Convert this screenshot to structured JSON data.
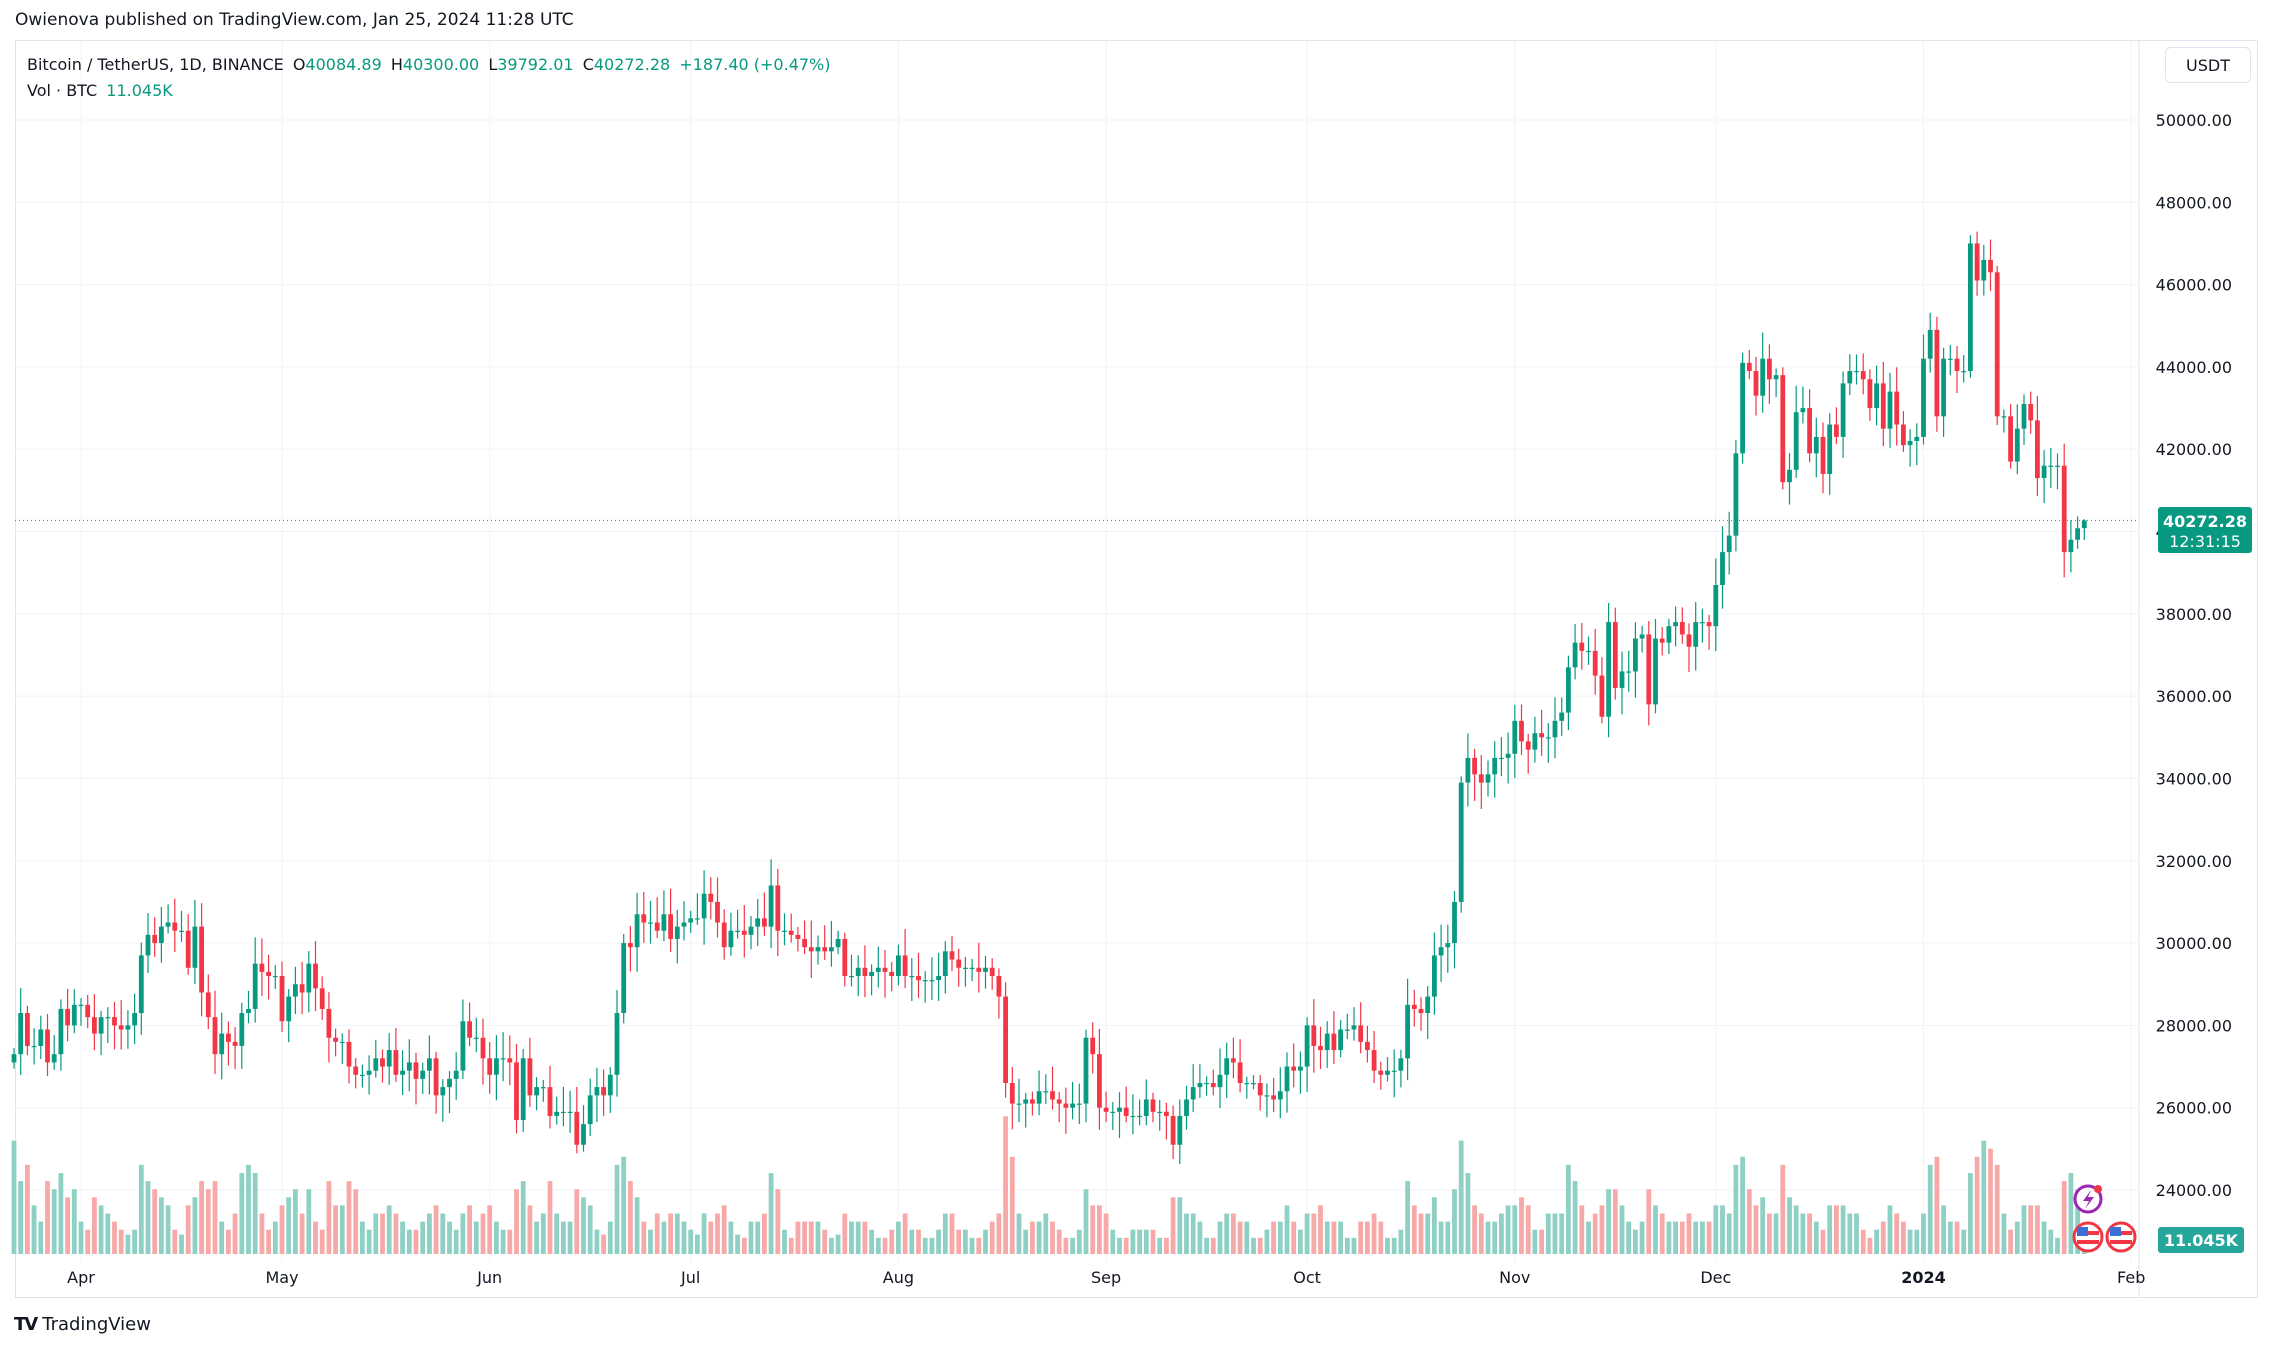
{
  "publisher": "Owienova published on TradingView.com, Jan 25, 2024 11:28 UTC",
  "legend": {
    "symbol": "Bitcoin / TetherUS, 1D, BINANCE",
    "open_label": "O",
    "open": "40084.89",
    "high_label": "H",
    "high": "40300.00",
    "low_label": "L",
    "low": "39792.01",
    "close_label": "C",
    "close": "40272.28",
    "change": "+187.40 (+0.47%)",
    "vol_label": "Vol · BTC",
    "vol_value": "11.045K"
  },
  "currency_button": "USDT",
  "last_price_label": "40272.28",
  "countdown": "12:31:15",
  "volume_label": "11.045K",
  "brand": "TradingView",
  "colors": {
    "up": "#089981",
    "down": "#f23645",
    "vol_up": "#8fd0c5",
    "vol_down": "#f7a8a8",
    "grid": "#f0f3fa"
  },
  "icons": [
    "lightning-event-icon",
    "us-flag-event-icon",
    "us-flag-event-icon"
  ],
  "chart_data": {
    "type": "candlestick",
    "start_date": "2023-03-22",
    "end_date": "2024-01-25",
    "interval": "1D",
    "close_thousands": [
      27.3,
      28.3,
      27.5,
      27.5,
      27.9,
      27.1,
      27.3,
      28.4,
      28.0,
      28.5,
      28.5,
      28.2,
      27.8,
      28.2,
      28.2,
      28.0,
      27.9,
      28.0,
      28.3,
      29.7,
      30.2,
      30.0,
      30.4,
      30.5,
      30.3,
      30.3,
      29.4,
      30.4,
      28.8,
      28.2,
      27.3,
      27.8,
      27.6,
      27.5,
      28.3,
      28.4,
      29.5,
      29.3,
      29.2,
      29.2,
      28.1,
      28.7,
      29.0,
      28.8,
      29.5,
      28.9,
      28.4,
      27.7,
      27.6,
      27.6,
      27.0,
      26.8,
      26.8,
      26.9,
      27.2,
      27.0,
      27.4,
      26.8,
      26.9,
      27.1,
      26.7,
      26.9,
      27.2,
      26.3,
      26.5,
      26.7,
      26.9,
      28.1,
      27.7,
      27.7,
      27.2,
      26.8,
      27.2,
      27.2,
      27.1,
      25.7,
      27.2,
      26.3,
      26.5,
      26.5,
      25.8,
      25.9,
      25.9,
      25.9,
      25.1,
      25.6,
      26.3,
      26.5,
      26.3,
      26.8,
      28.3,
      30.0,
      29.9,
      30.7,
      30.5,
      30.5,
      30.3,
      30.7,
      30.1,
      30.4,
      30.5,
      30.6,
      30.6,
      31.2,
      31.0,
      30.5,
      29.9,
      30.3,
      30.3,
      30.2,
      30.4,
      30.6,
      30.4,
      31.4,
      30.3,
      30.3,
      30.2,
      30.1,
      29.9,
      29.8,
      29.9,
      29.8,
      29.9,
      30.1,
      29.2,
      29.2,
      29.4,
      29.2,
      29.3,
      29.4,
      29.3,
      29.2,
      29.7,
      29.2,
      29.2,
      29.1,
      29.1,
      29.1,
      29.2,
      29.8,
      29.6,
      29.4,
      29.4,
      29.4,
      29.3,
      29.4,
      29.2,
      28.7,
      26.6,
      26.1,
      26.1,
      26.2,
      26.1,
      26.4,
      26.4,
      26.2,
      26.1,
      26.0,
      26.1,
      26.1,
      27.7,
      27.3,
      26.0,
      25.9,
      25.9,
      26.0,
      25.8,
      25.8,
      25.8,
      26.2,
      25.9,
      25.9,
      25.8,
      25.1,
      25.8,
      26.2,
      26.5,
      26.6,
      26.6,
      26.5,
      26.8,
      27.2,
      27.1,
      26.6,
      26.6,
      26.6,
      26.3,
      26.3,
      26.2,
      26.4,
      27.0,
      26.9,
      27.0,
      28.0,
      27.5,
      27.4,
      27.8,
      27.4,
      27.9,
      27.9,
      28.0,
      27.6,
      27.4,
      26.9,
      26.8,
      26.9,
      26.9,
      27.2,
      28.5,
      28.4,
      28.3,
      28.7,
      29.7,
      29.9,
      30.0,
      31.0,
      33.9,
      34.5,
      34.1,
      33.9,
      34.1,
      34.5,
      34.5,
      34.6,
      35.4,
      34.9,
      34.7,
      35.1,
      35.0,
      35.0,
      35.4,
      35.6,
      36.7,
      37.3,
      37.1,
      37.1,
      36.5,
      35.5,
      37.8,
      36.2,
      36.6,
      36.6,
      37.4,
      37.5,
      35.8,
      37.4,
      37.3,
      37.7,
      37.8,
      37.5,
      37.2,
      37.8,
      37.8,
      37.7,
      38.7,
      39.5,
      39.9,
      41.9,
      44.1,
      43.9,
      43.3,
      44.2,
      43.7,
      43.8,
      41.2,
      41.5,
      42.9,
      43.0,
      41.9,
      42.3,
      41.4,
      42.6,
      42.3,
      43.6,
      43.9,
      43.9,
      43.7,
      43.0,
      43.6,
      42.5,
      43.4,
      42.6,
      42.1,
      42.2,
      42.3,
      44.2,
      44.9,
      42.8,
      44.2,
      44.2,
      43.9,
      43.9,
      47.0,
      46.1,
      46.6,
      46.3,
      42.8,
      42.8,
      41.7,
      42.5,
      43.1,
      42.7,
      41.3,
      41.6,
      41.6,
      41.6,
      39.5,
      39.8,
      40.08,
      40.27
    ],
    "volume_k": [
      70,
      45,
      55,
      30,
      20,
      45,
      40,
      50,
      35,
      40,
      20,
      15,
      35,
      30,
      25,
      20,
      15,
      12,
      15,
      55,
      45,
      40,
      35,
      30,
      15,
      12,
      30,
      35,
      45,
      40,
      45,
      20,
      15,
      25,
      50,
      55,
      50,
      25,
      15,
      20,
      30,
      35,
      40,
      25,
      40,
      20,
      15,
      45,
      30,
      30,
      45,
      40,
      20,
      15,
      25,
      25,
      30,
      25,
      20,
      15,
      15,
      20,
      25,
      30,
      25,
      20,
      15,
      25,
      30,
      20,
      25,
      30,
      20,
      15,
      15,
      40,
      45,
      30,
      20,
      25,
      45,
      25,
      20,
      20,
      40,
      35,
      30,
      15,
      12,
      20,
      55,
      60,
      45,
      35,
      20,
      15,
      25,
      20,
      25,
      25,
      20,
      15,
      12,
      25,
      20,
      25,
      30,
      20,
      12,
      10,
      20,
      20,
      25,
      50,
      40,
      15,
      10,
      20,
      20,
      20,
      20,
      15,
      10,
      12,
      25,
      20,
      20,
      20,
      15,
      10,
      10,
      15,
      20,
      25,
      15,
      15,
      10,
      10,
      15,
      25,
      25,
      15,
      15,
      10,
      10,
      15,
      20,
      25,
      85,
      60,
      25,
      15,
      20,
      20,
      25,
      20,
      15,
      10,
      10,
      15,
      40,
      30,
      30,
      25,
      15,
      10,
      10,
      15,
      15,
      15,
      15,
      10,
      10,
      35,
      35,
      25,
      25,
      20,
      10,
      10,
      20,
      25,
      25,
      20,
      20,
      10,
      10,
      15,
      20,
      20,
      30,
      20,
      15,
      25,
      25,
      30,
      20,
      20,
      20,
      10,
      10,
      20,
      20,
      25,
      20,
      10,
      10,
      15,
      45,
      30,
      25,
      25,
      35,
      20,
      20,
      40,
      70,
      50,
      30,
      25,
      20,
      20,
      25,
      30,
      30,
      35,
      30,
      15,
      15,
      25,
      25,
      25,
      55,
      45,
      30,
      20,
      25,
      30,
      40,
      40,
      30,
      20,
      15,
      20,
      40,
      30,
      25,
      20,
      20,
      20,
      25,
      20,
      20,
      20,
      30,
      30,
      25,
      55,
      60,
      40,
      30,
      35,
      25,
      25,
      55,
      35,
      30,
      25,
      25,
      20,
      15,
      30,
      30,
      30,
      25,
      25,
      15,
      10,
      15,
      20,
      30,
      25,
      20,
      15,
      15,
      25,
      55,
      60,
      30,
      20,
      20,
      15,
      50,
      60,
      70,
      65,
      55,
      25,
      15,
      20,
      30,
      30,
      30,
      20,
      15,
      10,
      45,
      50,
      40,
      11.045
    ],
    "y_ticks": [
      "50000.00",
      "48000.00",
      "46000.00",
      "44000.00",
      "42000.00",
      "40000.00",
      "38000.00",
      "36000.00",
      "34000.00",
      "32000.00",
      "30000.00",
      "28000.00",
      "26000.00",
      "24000.00"
    ],
    "x_ticks": [
      "Apr",
      "May",
      "Jun",
      "Jul",
      "Aug",
      "Sep",
      "Oct",
      "Nov",
      "Dec",
      "2024",
      "Feb"
    ],
    "ylim": [
      22500,
      51000
    ],
    "last_price": 40272.28,
    "grid": true
  }
}
